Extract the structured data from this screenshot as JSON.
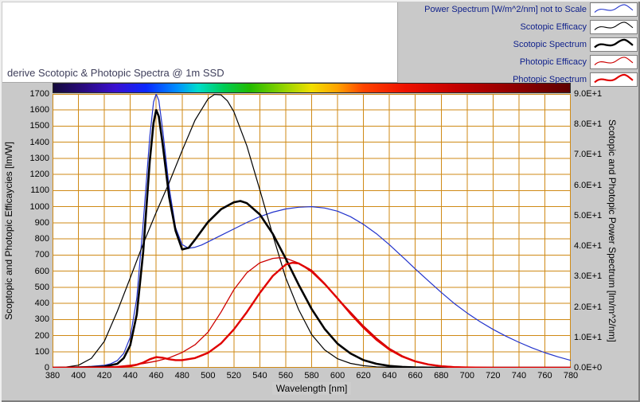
{
  "window": {
    "bg": "#c9c9c9"
  },
  "title_panel": {
    "title": "derive Scotopic & Photopic Spectra @ 1m SSD"
  },
  "legend": {
    "text_color": "#10218b",
    "items": [
      {
        "label": "Power Spectrum [W/m^2/nm] not to Scale",
        "series_index": 0
      },
      {
        "label": "Scotopic Efficacy",
        "series_index": 1
      },
      {
        "label": "Scotopic Spectrum",
        "series_index": 3
      },
      {
        "label": "Photopic Efficacy",
        "series_index": 2
      },
      {
        "label": "Photopic Spectrum",
        "series_index": 4
      }
    ]
  },
  "axes": {
    "x_label": "Wavelength [nm]",
    "y_left_label": "Scoptopic and Photopic Efficaycies [lm/W]",
    "y_right_label": "Scotopic and Photopic Power Spectrum [lm/m^2/nm]"
  },
  "chart_data": {
    "type": "line",
    "title": "derive Scotopic & Photopic Spectra @ 1m SSD",
    "xlabel": "Wavelength [nm]",
    "ylabel_left": "Scoptopic and Photopic Efficaycies [lm/W]",
    "ylabel_right": "Scotopic and Photopic Power Spectrum [lm/m^2/nm]",
    "x_range": [
      380,
      780
    ],
    "y_left_range": [
      0,
      1700
    ],
    "y_right_range": [
      0,
      90
    ],
    "grid": true,
    "grid_color": "#cf8a16",
    "plot_bg": "#ffffff",
    "x_ticks": [
      380,
      400,
      420,
      440,
      460,
      480,
      500,
      520,
      540,
      560,
      580,
      600,
      620,
      640,
      660,
      680,
      700,
      720,
      740,
      760,
      780
    ],
    "y_left_ticks": [
      0,
      100,
      200,
      300,
      400,
      500,
      600,
      700,
      800,
      900,
      1000,
      1100,
      1200,
      1300,
      1400,
      1500,
      1600,
      1700
    ],
    "y_right_ticks": [
      "0.0E+0",
      "1.0E+1",
      "2.0E+1",
      "3.0E+1",
      "4.0E+1",
      "5.0E+1",
      "6.0E+1",
      "7.0E+1",
      "8.0E+1",
      "9.0E+1"
    ],
    "legend_position": "top-right",
    "series": [
      {
        "name": "Power Spectrum [W/m^2/nm] not to Scale",
        "color": "#2233cc",
        "width": 1.2,
        "axis": "left",
        "points": [
          [
            380,
            2
          ],
          [
            390,
            3
          ],
          [
            400,
            5
          ],
          [
            410,
            9
          ],
          [
            420,
            16
          ],
          [
            425,
            25
          ],
          [
            430,
            45
          ],
          [
            435,
            90
          ],
          [
            440,
            190
          ],
          [
            445,
            430
          ],
          [
            450,
            900
          ],
          [
            455,
            1430
          ],
          [
            458,
            1650
          ],
          [
            460,
            1700
          ],
          [
            462,
            1660
          ],
          [
            465,
            1480
          ],
          [
            470,
            1120
          ],
          [
            475,
            870
          ],
          [
            480,
            765
          ],
          [
            485,
            742
          ],
          [
            490,
            748
          ],
          [
            495,
            762
          ],
          [
            500,
            782
          ],
          [
            510,
            822
          ],
          [
            520,
            862
          ],
          [
            530,
            902
          ],
          [
            540,
            938
          ],
          [
            550,
            966
          ],
          [
            560,
            986
          ],
          [
            570,
            997
          ],
          [
            580,
            1000
          ],
          [
            590,
            992
          ],
          [
            600,
            972
          ],
          [
            610,
            938
          ],
          [
            620,
            890
          ],
          [
            630,
            832
          ],
          [
            640,
            764
          ],
          [
            650,
            690
          ],
          [
            660,
            614
          ],
          [
            670,
            540
          ],
          [
            680,
            468
          ],
          [
            690,
            400
          ],
          [
            700,
            340
          ],
          [
            710,
            286
          ],
          [
            720,
            238
          ],
          [
            730,
            196
          ],
          [
            740,
            158
          ],
          [
            750,
            124
          ],
          [
            760,
            94
          ],
          [
            770,
            68
          ],
          [
            780,
            46
          ]
        ]
      },
      {
        "name": "Scotopic Efficacy",
        "color": "#000000",
        "width": 1.2,
        "axis": "left",
        "points": [
          [
            380,
            1
          ],
          [
            390,
            4
          ],
          [
            400,
            16
          ],
          [
            410,
            59
          ],
          [
            420,
            164
          ],
          [
            430,
            351
          ],
          [
            440,
            558
          ],
          [
            450,
            770
          ],
          [
            460,
            964
          ],
          [
            470,
            1149
          ],
          [
            480,
            1348
          ],
          [
            490,
            1537
          ],
          [
            500,
            1669
          ],
          [
            505,
            1697
          ],
          [
            510,
            1694
          ],
          [
            515,
            1657
          ],
          [
            520,
            1590
          ],
          [
            530,
            1378
          ],
          [
            540,
            1105
          ],
          [
            550,
            824
          ],
          [
            560,
            559
          ],
          [
            570,
            361
          ],
          [
            580,
            206
          ],
          [
            590,
            111
          ],
          [
            600,
            56
          ],
          [
            610,
            27
          ],
          [
            620,
            13
          ],
          [
            630,
            6
          ],
          [
            640,
            3
          ],
          [
            650,
            1
          ],
          [
            660,
            1
          ],
          [
            670,
            0
          ],
          [
            680,
            0
          ],
          [
            700,
            0
          ],
          [
            780,
            0
          ]
        ]
      },
      {
        "name": "Photopic Efficacy",
        "color": "#cc0000",
        "width": 1.3,
        "axis": "left",
        "points": [
          [
            380,
            0
          ],
          [
            400,
            0
          ],
          [
            410,
            1
          ],
          [
            420,
            3
          ],
          [
            430,
            8
          ],
          [
            440,
            16
          ],
          [
            450,
            26
          ],
          [
            460,
            41
          ],
          [
            470,
            62
          ],
          [
            480,
            95
          ],
          [
            490,
            143
          ],
          [
            500,
            221
          ],
          [
            510,
            345
          ],
          [
            520,
            485
          ],
          [
            530,
            590
          ],
          [
            540,
            652
          ],
          [
            550,
            679
          ],
          [
            555,
            683
          ],
          [
            560,
            680
          ],
          [
            570,
            650
          ],
          [
            580,
            594
          ],
          [
            590,
            517
          ],
          [
            600,
            431
          ],
          [
            610,
            346
          ],
          [
            620,
            260
          ],
          [
            630,
            185
          ],
          [
            640,
            120
          ],
          [
            650,
            74
          ],
          [
            660,
            42
          ],
          [
            670,
            22
          ],
          [
            680,
            12
          ],
          [
            690,
            6
          ],
          [
            700,
            3
          ],
          [
            710,
            1
          ],
          [
            720,
            1
          ],
          [
            730,
            0
          ],
          [
            780,
            0
          ]
        ]
      },
      {
        "name": "Scotopic Spectrum",
        "color": "#000000",
        "width": 2.6,
        "axis": "right",
        "points": [
          [
            380,
            0
          ],
          [
            400,
            0.1
          ],
          [
            410,
            0.2
          ],
          [
            420,
            0.4
          ],
          [
            430,
            1.3
          ],
          [
            435,
            3.2
          ],
          [
            440,
            7.4
          ],
          [
            445,
            17.5
          ],
          [
            450,
            38.1
          ],
          [
            455,
            67.8
          ],
          [
            458,
            80.5
          ],
          [
            460,
            84.7
          ],
          [
            462,
            82.6
          ],
          [
            465,
            73.6
          ],
          [
            470,
            56.1
          ],
          [
            475,
            45
          ],
          [
            480,
            38.9
          ],
          [
            485,
            39.4
          ],
          [
            490,
            42.1
          ],
          [
            500,
            47.9
          ],
          [
            510,
            52.1
          ],
          [
            520,
            54.4
          ],
          [
            525,
            54.8
          ],
          [
            530,
            54.1
          ],
          [
            540,
            50.4
          ],
          [
            550,
            44
          ],
          [
            560,
            35.9
          ],
          [
            570,
            27.3
          ],
          [
            580,
            19.3
          ],
          [
            590,
            12.8
          ],
          [
            600,
            7.9
          ],
          [
            610,
            4.7
          ],
          [
            620,
            2.5
          ],
          [
            630,
            1.3
          ],
          [
            640,
            0.6
          ],
          [
            650,
            0.3
          ],
          [
            660,
            0.1
          ],
          [
            680,
            0
          ],
          [
            780,
            0
          ]
        ]
      },
      {
        "name": "Photopic Spectrum",
        "color": "#e00000",
        "width": 2.4,
        "axis": "right",
        "points": [
          [
            380,
            0
          ],
          [
            420,
            0.1
          ],
          [
            430,
            0.2
          ],
          [
            440,
            0.5
          ],
          [
            445,
            1
          ],
          [
            450,
            1.7
          ],
          [
            455,
            2.8
          ],
          [
            460,
            3.5
          ],
          [
            465,
            3.3
          ],
          [
            470,
            2.8
          ],
          [
            475,
            2.5
          ],
          [
            480,
            2.5
          ],
          [
            490,
            3.2
          ],
          [
            500,
            4.9
          ],
          [
            510,
            8
          ],
          [
            520,
            12.6
          ],
          [
            530,
            18.3
          ],
          [
            540,
            24.6
          ],
          [
            550,
            30.2
          ],
          [
            560,
            33.9
          ],
          [
            565,
            34.5
          ],
          [
            570,
            34.3
          ],
          [
            580,
            31.9
          ],
          [
            590,
            27.6
          ],
          [
            600,
            22.8
          ],
          [
            610,
            17.8
          ],
          [
            620,
            13.2
          ],
          [
            630,
            9.2
          ],
          [
            640,
            6
          ],
          [
            650,
            3.7
          ],
          [
            660,
            2.1
          ],
          [
            670,
            1.1
          ],
          [
            680,
            0.5
          ],
          [
            690,
            0.2
          ],
          [
            700,
            0.1
          ],
          [
            720,
            0
          ],
          [
            780,
            0
          ]
        ]
      }
    ],
    "spectrum_bar_stops": [
      {
        "pos": 0,
        "color": "#140a3c"
      },
      {
        "pos": 6,
        "color": "#2a0a80"
      },
      {
        "pos": 12,
        "color": "#3a10d0"
      },
      {
        "pos": 18,
        "color": "#0a28ff"
      },
      {
        "pos": 24,
        "color": "#0090ff"
      },
      {
        "pos": 28,
        "color": "#00ddcc"
      },
      {
        "pos": 33,
        "color": "#00cc55"
      },
      {
        "pos": 38,
        "color": "#22bb00"
      },
      {
        "pos": 45,
        "color": "#99d500"
      },
      {
        "pos": 50,
        "color": "#f2df00"
      },
      {
        "pos": 55,
        "color": "#ffa200"
      },
      {
        "pos": 60,
        "color": "#ff4400"
      },
      {
        "pos": 68,
        "color": "#ee1100"
      },
      {
        "pos": 78,
        "color": "#c40000"
      },
      {
        "pos": 90,
        "color": "#8c0000"
      },
      {
        "pos": 100,
        "color": "#5e0000"
      }
    ]
  }
}
